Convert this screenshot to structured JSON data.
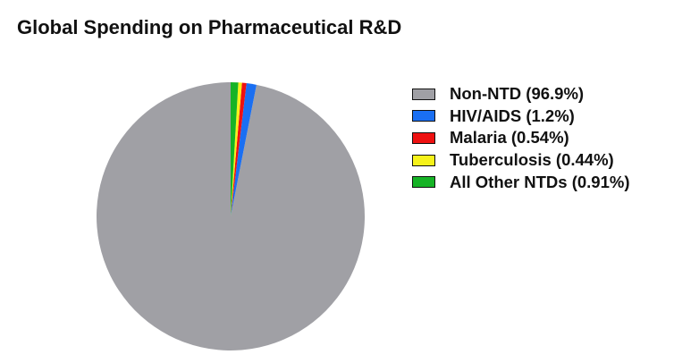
{
  "title": "Global Spending on Pharmaceutical R&D",
  "chart_data": {
    "type": "pie",
    "title": "Global Spending on Pharmaceutical R&D",
    "start": "12 o'clock",
    "direction": "counterclockwise",
    "legend_position": "right",
    "slices": [
      {
        "name": "Non-NTD",
        "value": 96.9,
        "label": "Non-NTD (96.9%)",
        "color": "#a0a0a5"
      },
      {
        "name": "HIV/AIDS",
        "value": 1.2,
        "label": "HIV/AIDS (1.2%)",
        "color": "#1a6ff2"
      },
      {
        "name": "Malaria",
        "value": 0.54,
        "label": "Malaria (0.54%)",
        "color": "#ee1111"
      },
      {
        "name": "Tuberculosis",
        "value": 0.44,
        "label": "Tuberculosis (0.44%)",
        "color": "#f6f21a"
      },
      {
        "name": "All Other NTDs",
        "value": 0.91,
        "label": "All Other NTDs (0.91%)",
        "color": "#16b326"
      }
    ]
  }
}
